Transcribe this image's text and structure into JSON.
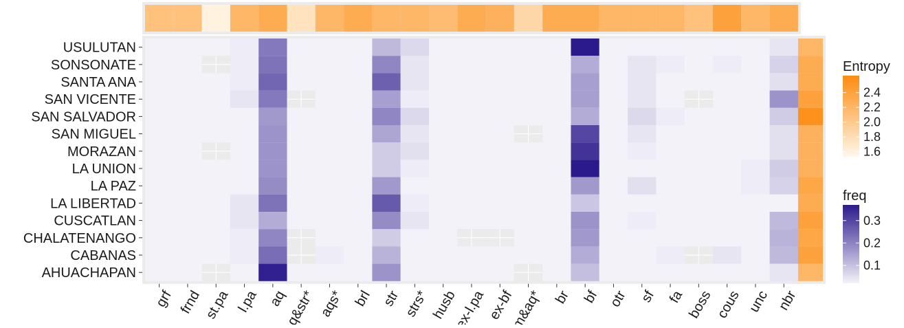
{
  "chart_data": {
    "type": "heatmap",
    "title": "",
    "xlabel": "",
    "ylabel": "",
    "x_categories": [
      "grf",
      "frnd",
      "st.pa",
      "l.pa",
      "aq",
      "aq&str*",
      "aqs*",
      "brl",
      "str",
      "strs*",
      "husb",
      "ex-l.pa",
      "ex-bf",
      "fam&aq*",
      "br",
      "bf",
      "otr",
      "sf",
      "fa",
      "boss",
      "cous",
      "unc",
      "nbr"
    ],
    "y_categories": [
      "USULUTAN",
      "SONSONATE",
      "SANTA ANA",
      "SAN VICENTE",
      "SAN SALVADOR",
      "SAN MIGUEL",
      "MORAZAN",
      "LA UNION",
      "LA PAZ",
      "LA LIBERTAD",
      "CUSCATLAN",
      "CHALATENANGO",
      "CABANAS",
      "AHUACHAPAN"
    ],
    "freq_matrix": [
      [
        0.01,
        0.03,
        0.0,
        0.04,
        0.22,
        0.0,
        0.03,
        0.0,
        0.12,
        0.07,
        0.0,
        0.01,
        0.01,
        0.0,
        0.0,
        0.39,
        0.01,
        0.03,
        0.02,
        0.0,
        0.02,
        0.01,
        0.05
      ],
      [
        0.01,
        0.03,
        null,
        0.04,
        0.23,
        0.0,
        0.01,
        0.0,
        0.2,
        0.05,
        0.0,
        0.01,
        0.0,
        0.0,
        0.0,
        0.14,
        0.01,
        0.05,
        0.04,
        0.0,
        0.04,
        0.03,
        0.08
      ],
      [
        0.0,
        0.01,
        0.0,
        0.04,
        0.25,
        0.0,
        0.01,
        0.0,
        0.26,
        0.05,
        0.0,
        0.01,
        0.0,
        0.0,
        0.0,
        0.16,
        0.01,
        0.05,
        0.03,
        0.0,
        0.01,
        0.01,
        0.06
      ],
      [
        0.01,
        0.01,
        0.0,
        0.05,
        0.22,
        null,
        0.01,
        0.01,
        0.16,
        0.04,
        0.0,
        0.03,
        0.01,
        0.0,
        0.0,
        0.16,
        0.01,
        0.05,
        0.03,
        null,
        0.02,
        0.02,
        0.18
      ],
      [
        0.01,
        0.02,
        0.01,
        0.03,
        0.17,
        0.0,
        0.03,
        0.01,
        0.2,
        0.07,
        0.0,
        0.02,
        0.0,
        0.0,
        0.0,
        0.14,
        0.02,
        0.07,
        0.04,
        0.0,
        0.01,
        0.02,
        0.09
      ],
      [
        0.01,
        0.01,
        0.01,
        0.02,
        0.18,
        0.0,
        0.01,
        0.01,
        0.15,
        0.05,
        0.0,
        0.01,
        0.01,
        null,
        0.0,
        0.3,
        0.01,
        0.05,
        0.02,
        0.0,
        0.03,
        0.02,
        0.06
      ],
      [
        0.0,
        0.02,
        null,
        0.03,
        0.18,
        0.02,
        0.02,
        0.0,
        0.09,
        0.06,
        0.0,
        0.01,
        0.0,
        0.0,
        0.01,
        0.33,
        0.01,
        0.04,
        0.02,
        0.01,
        0.01,
        0.02,
        0.06
      ],
      [
        0.01,
        0.03,
        0.0,
        0.02,
        0.18,
        0.0,
        0.01,
        0.0,
        0.09,
        0.04,
        0.0,
        0.02,
        0.0,
        0.0,
        0.0,
        0.37,
        0.0,
        0.02,
        0.03,
        0.0,
        0.01,
        0.04,
        0.09
      ],
      [
        0.01,
        0.0,
        0.0,
        0.03,
        0.19,
        0.0,
        0.01,
        0.0,
        0.17,
        0.03,
        0.0,
        0.01,
        0.0,
        0.0,
        0.01,
        0.17,
        0.01,
        0.06,
        0.03,
        0.0,
        0.03,
        0.04,
        0.08
      ],
      [
        0.01,
        0.02,
        0.0,
        0.05,
        0.23,
        0.0,
        0.02,
        0.0,
        0.27,
        0.04,
        0.0,
        0.02,
        0.0,
        0.0,
        0.0,
        0.1,
        0.01,
        0.03,
        0.02,
        0.0,
        0.01,
        0.01,
        0.03
      ],
      [
        0.01,
        0.02,
        0.0,
        0.05,
        0.14,
        0.0,
        0.01,
        0.0,
        0.19,
        0.05,
        0.0,
        0.02,
        0.0,
        0.0,
        0.0,
        0.18,
        0.01,
        0.04,
        0.02,
        0.0,
        0.03,
        0.02,
        0.12
      ],
      [
        0.0,
        0.02,
        0.0,
        0.04,
        0.2,
        null,
        0.03,
        0.0,
        0.09,
        0.02,
        0.0,
        null,
        null,
        0.0,
        0.0,
        0.17,
        0.01,
        0.03,
        0.03,
        0.0,
        0.01,
        0.02,
        0.13
      ],
      [
        0.01,
        0.03,
        0.01,
        0.04,
        0.24,
        null,
        0.04,
        0.0,
        0.13,
        0.02,
        0.0,
        0.01,
        0.0,
        0.0,
        0.0,
        0.14,
        0.01,
        0.03,
        0.04,
        null,
        0.05,
        0.01,
        0.12
      ],
      [
        0.01,
        0.01,
        null,
        0.03,
        0.36,
        0.0,
        0.01,
        0.01,
        0.18,
        0.03,
        0.0,
        0.01,
        0.0,
        null,
        0.0,
        0.11,
        0.01,
        0.02,
        0.03,
        0.0,
        0.01,
        0.01,
        0.05
      ]
    ],
    "column_entropy": [
      2.1,
      2.1,
      1.65,
      2.2,
      2.3,
      1.8,
      2.2,
      2.3,
      2.2,
      2.2,
      2.15,
      2.3,
      2.25,
      1.9,
      2.3,
      2.3,
      2.2,
      2.2,
      2.2,
      2.1,
      2.4,
      2.2,
      2.3
    ],
    "row_entropy": [
      2.2,
      2.3,
      2.3,
      2.4,
      2.55,
      2.25,
      2.25,
      2.25,
      2.35,
      2.3,
      2.4,
      2.35,
      2.4,
      2.2
    ],
    "legend_entropy": {
      "title": "Entropy",
      "ticks": [
        1.6,
        1.8,
        2.0,
        2.2,
        2.4
      ],
      "tick_labels": [
        "1.6",
        "1.8",
        "2.0",
        "2.2",
        "2.4"
      ],
      "range": [
        1.6,
        2.6
      ],
      "color_low": "#fff7ea",
      "color_high": "#fd8c10"
    },
    "legend_freq": {
      "title": "freq",
      "ticks": [
        0.1,
        0.2,
        0.3
      ],
      "tick_labels": [
        "0.1",
        "0.2",
        "0.3"
      ],
      "range": [
        0.03,
        0.37
      ],
      "color_low": "#f4f2f9",
      "color_high": "#2b1a8c"
    },
    "colors": {
      "na_fill": "#ebebeb",
      "panel_background": "#ebebeb",
      "grid": "#ffffff"
    },
    "legend_placement": "right"
  }
}
